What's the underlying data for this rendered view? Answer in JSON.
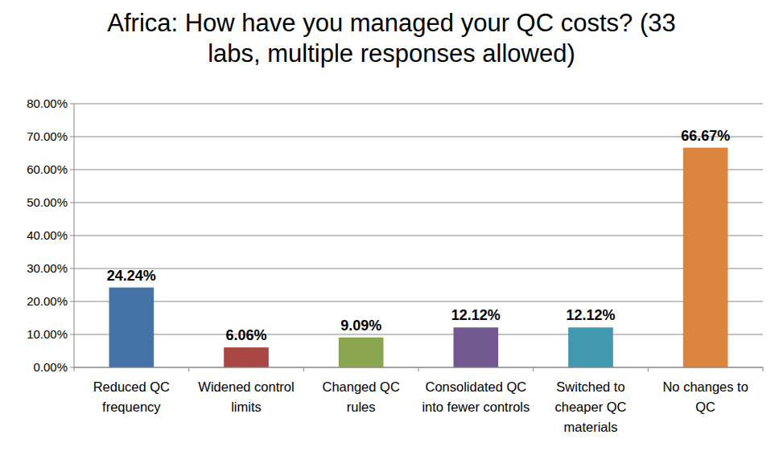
{
  "chart_data": {
    "type": "bar",
    "title": "Africa: How have you managed your QC costs? (33 labs, multiple responses allowed)",
    "categories": [
      "Reduced QC frequency",
      "Widened control limits",
      "Changed QC rules",
      "Consolidated QC into fewer controls",
      "Switched to cheaper QC materials",
      "No changes to QC"
    ],
    "values": [
      24.24,
      6.06,
      9.09,
      12.12,
      12.12,
      66.67
    ],
    "value_labels": [
      "24.24%",
      "6.06%",
      "9.09%",
      "12.12%",
      "12.12%",
      "66.67%"
    ],
    "colors": [
      "#4572a7",
      "#aa4643",
      "#89a54e",
      "#71588f",
      "#4198af",
      "#db843d"
    ],
    "ylim": [
      0,
      80
    ],
    "yticks": [
      {
        "value": 0,
        "label": "0.00%"
      },
      {
        "value": 10,
        "label": "10.00%"
      },
      {
        "value": 20,
        "label": "20.00%"
      },
      {
        "value": 30,
        "label": "30.00%"
      },
      {
        "value": 40,
        "label": "40.00%"
      },
      {
        "value": 50,
        "label": "50.00%"
      },
      {
        "value": 60,
        "label": "60.00%"
      },
      {
        "value": 70,
        "label": "70.00%"
      },
      {
        "value": 80,
        "label": "80.00%"
      }
    ],
    "grid": true,
    "data_labels": true
  }
}
